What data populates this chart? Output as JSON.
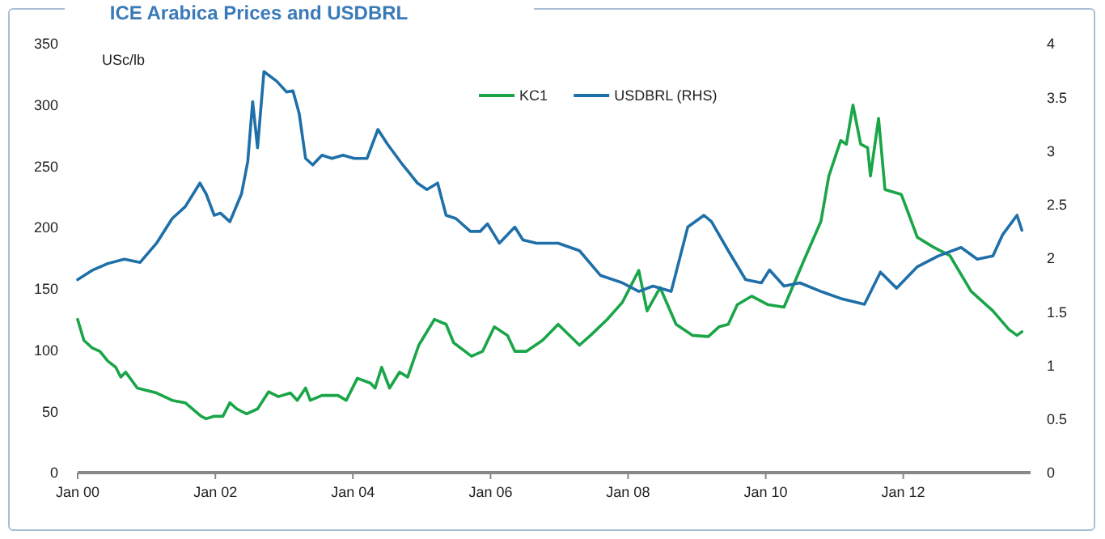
{
  "chart_data": {
    "type": "line",
    "title": "ICE Arabica Prices and USDBRL",
    "ylabel": "USc/lb",
    "legend": "top",
    "grid": false,
    "xlim": [
      "2000-01-01",
      "2013-11-07"
    ],
    "xticks": [
      {
        "value": "2000-01-01",
        "label": "Jan 00"
      },
      {
        "value": "2002-01-01",
        "label": "Jan 02"
      },
      {
        "value": "2004-01-01",
        "label": "Jan 04"
      },
      {
        "value": "2006-01-01",
        "label": "Jan 06"
      },
      {
        "value": "2008-01-01",
        "label": "Jan 08"
      },
      {
        "value": "2010-01-01",
        "label": "Jan 10"
      },
      {
        "value": "2012-01-01",
        "label": "Jan 12"
      }
    ],
    "ylim": [
      0,
      350
    ],
    "yticks": [
      0,
      50,
      100,
      150,
      200,
      250,
      300,
      350
    ],
    "y2lim": [
      0,
      4
    ],
    "y2ticks": [
      0,
      0.5,
      1,
      1.5,
      2,
      2.5,
      3,
      3.5,
      4
    ],
    "series": [
      {
        "name": "KC1",
        "color": "#1aa548",
        "x": [
          "2000-01-01",
          "2000-02-03",
          "2000-03-16",
          "2000-04-28",
          "2000-06-09",
          "2000-07-21",
          "2000-08-17",
          "2000-09-12",
          "2000-11-13",
          "2001-02-23",
          "2001-05-17",
          "2001-07-25",
          "2001-10-18",
          "2001-11-13",
          "2001-12-26",
          "2002-02-10",
          "2002-03-19",
          "2002-04-25",
          "2002-06-16",
          "2002-08-13",
          "2002-10-11",
          "2002-12-02",
          "2003-02-03",
          "2003-03-12",
          "2003-04-25",
          "2003-05-20",
          "2003-07-21",
          "2003-10-14",
          "2003-11-27",
          "2004-01-25",
          "2004-04-04",
          "2004-04-28",
          "2004-06-02",
          "2004-07-14",
          "2004-09-05",
          "2004-10-18",
          "2004-12-16",
          "2005-03-09",
          "2005-05-10",
          "2005-06-19",
          "2005-09-22",
          "2005-11-20",
          "2006-01-21",
          "2006-04-01",
          "2006-05-10",
          "2006-07-11",
          "2006-10-04",
          "2006-12-26",
          "2007-04-18",
          "2007-06-16",
          "2007-09-12",
          "2007-12-02",
          "2008-02-27",
          "2008-04-11",
          "2008-06-19",
          "2008-09-12",
          "2008-12-09",
          "2009-03-02",
          "2009-04-28",
          "2009-06-16",
          "2009-08-03",
          "2009-10-18",
          "2010-01-14",
          "2010-04-08",
          "2010-07-25",
          "2010-10-21",
          "2010-12-02",
          "2011-02-03",
          "2011-03-05",
          "2011-04-09",
          "2011-05-20",
          "2011-06-26",
          "2011-07-11",
          "2011-08-23",
          "2011-09-26",
          "2011-12-22",
          "2012-03-16",
          "2012-06-09",
          "2012-09-05",
          "2012-12-26",
          "2013-04-21",
          "2013-07-14",
          "2013-08-27",
          "2013-09-22"
        ],
        "values": [
          125,
          108,
          102,
          99,
          91,
          86,
          78,
          82,
          69,
          65,
          59,
          57,
          46,
          44,
          46,
          46,
          57,
          52,
          48,
          52,
          66,
          62,
          65,
          59,
          69,
          59,
          63,
          63,
          59,
          77,
          73,
          69,
          86,
          69,
          82,
          78,
          104,
          125,
          121,
          106,
          95,
          99,
          119,
          112,
          99,
          99,
          108,
          121,
          104,
          112,
          125,
          139,
          165,
          132,
          151,
          121,
          112,
          111,
          119,
          121,
          137,
          144,
          137,
          135,
          174,
          205,
          242,
          271,
          268,
          300,
          268,
          265,
          242,
          289,
          231,
          227,
          192,
          184,
          177,
          148,
          132,
          117,
          112,
          115
        ]
      },
      {
        "name": "USDBRL (RHS)",
        "color": "#1f6fa8",
        "axis": "y2",
        "x": [
          "2000-01-01",
          "2000-03-22",
          "2000-06-09",
          "2000-09-05",
          "2000-11-27",
          "2001-02-23",
          "2001-05-17",
          "2001-07-25",
          "2001-10-11",
          "2001-11-13",
          "2001-12-26",
          "2002-01-28",
          "2002-03-19",
          "2002-05-20",
          "2002-06-22",
          "2002-07-18",
          "2002-08-13",
          "2002-09-16",
          "2002-11-23",
          "2003-01-14",
          "2003-02-17",
          "2003-03-22",
          "2003-04-25",
          "2003-06-02",
          "2003-07-21",
          "2003-09-12",
          "2003-11-10",
          "2004-01-08",
          "2004-03-16",
          "2004-05-13",
          "2004-07-04",
          "2004-09-22",
          "2004-12-09",
          "2005-01-28",
          "2005-03-26",
          "2005-05-10",
          "2005-07-01",
          "2005-09-16",
          "2005-11-07",
          "2005-12-16",
          "2006-02-17",
          "2006-05-10",
          "2006-06-22",
          "2006-09-02",
          "2006-12-26",
          "2007-04-18",
          "2007-08-07",
          "2007-12-02",
          "2008-02-27",
          "2008-05-12",
          "2008-08-17",
          "2008-11-13",
          "2009-02-07",
          "2009-03-19",
          "2009-06-16",
          "2009-09-16",
          "2009-12-09",
          "2010-01-21",
          "2010-04-08",
          "2010-07-01",
          "2010-10-21",
          "2011-02-10",
          "2011-06-09",
          "2011-09-02",
          "2011-11-27",
          "2012-03-16",
          "2012-07-04",
          "2012-11-03",
          "2013-01-28",
          "2013-04-21",
          "2013-06-12",
          "2013-08-27",
          "2013-09-22"
        ],
        "values": [
          1.8,
          1.89,
          1.95,
          1.99,
          1.96,
          2.14,
          2.37,
          2.48,
          2.7,
          2.6,
          2.4,
          2.42,
          2.34,
          2.6,
          2.9,
          3.46,
          3.03,
          3.74,
          3.65,
          3.55,
          3.56,
          3.35,
          2.93,
          2.87,
          2.96,
          2.93,
          2.96,
          2.93,
          2.93,
          3.2,
          3.06,
          2.87,
          2.7,
          2.64,
          2.7,
          2.4,
          2.37,
          2.25,
          2.25,
          2.32,
          2.14,
          2.29,
          2.17,
          2.14,
          2.14,
          2.07,
          1.84,
          1.77,
          1.69,
          1.74,
          1.69,
          2.29,
          2.4,
          2.34,
          2.07,
          1.8,
          1.77,
          1.89,
          1.74,
          1.77,
          1.69,
          1.62,
          1.57,
          1.87,
          1.72,
          1.92,
          2.02,
          2.1,
          1.99,
          2.02,
          2.22,
          2.4,
          2.26
        ]
      }
    ]
  }
}
